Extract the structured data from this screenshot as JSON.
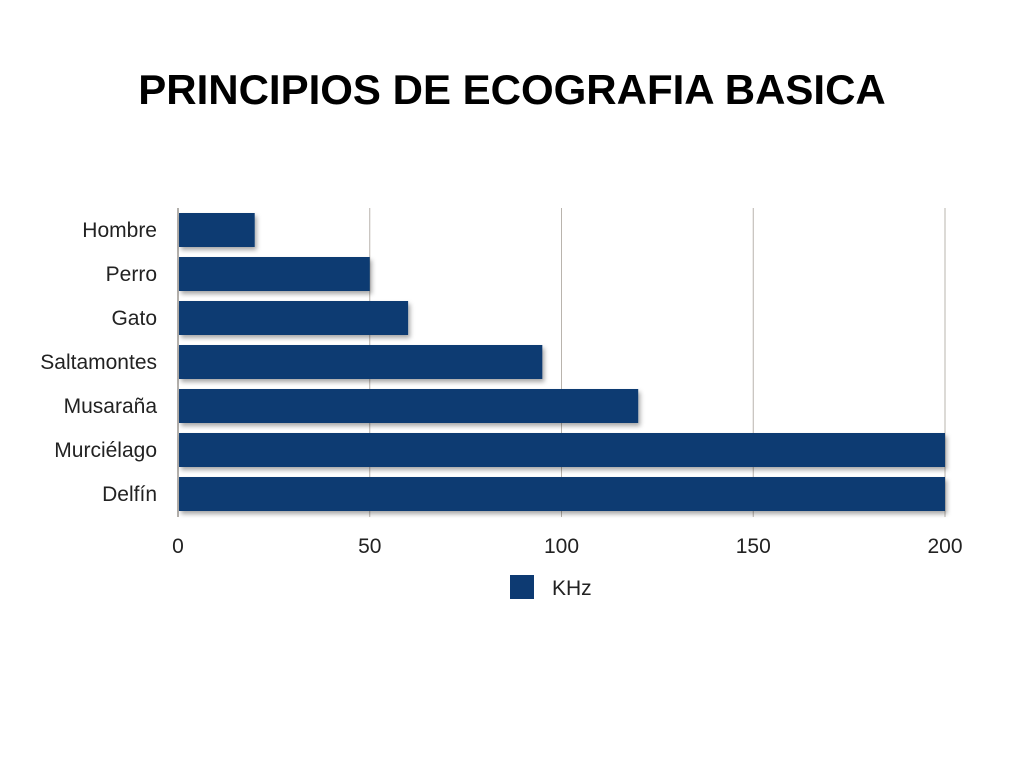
{
  "slide": {
    "title": "PRINCIPIOS DE ECOGRAFIA BASICA"
  },
  "colors": {
    "bar": "#0d3a72",
    "grid": "#b9b4ad",
    "axis": "#9a9590",
    "text": "#222222"
  },
  "chart_data": {
    "type": "bar",
    "orientation": "horizontal",
    "title": "",
    "xlabel": "",
    "ylabel": "",
    "categories": [
      "Hombre",
      "Perro",
      "Gato",
      "Saltamontes",
      "Musaraña",
      "Murciélago",
      "Delfín"
    ],
    "series": [
      {
        "name": "KHz",
        "values": [
          20,
          50,
          60,
          95,
          120,
          200,
          200
        ]
      }
    ],
    "xlim": [
      0,
      200
    ],
    "xticks": [
      0,
      50,
      100,
      150,
      200
    ],
    "grid": true,
    "legend": "bottom"
  }
}
